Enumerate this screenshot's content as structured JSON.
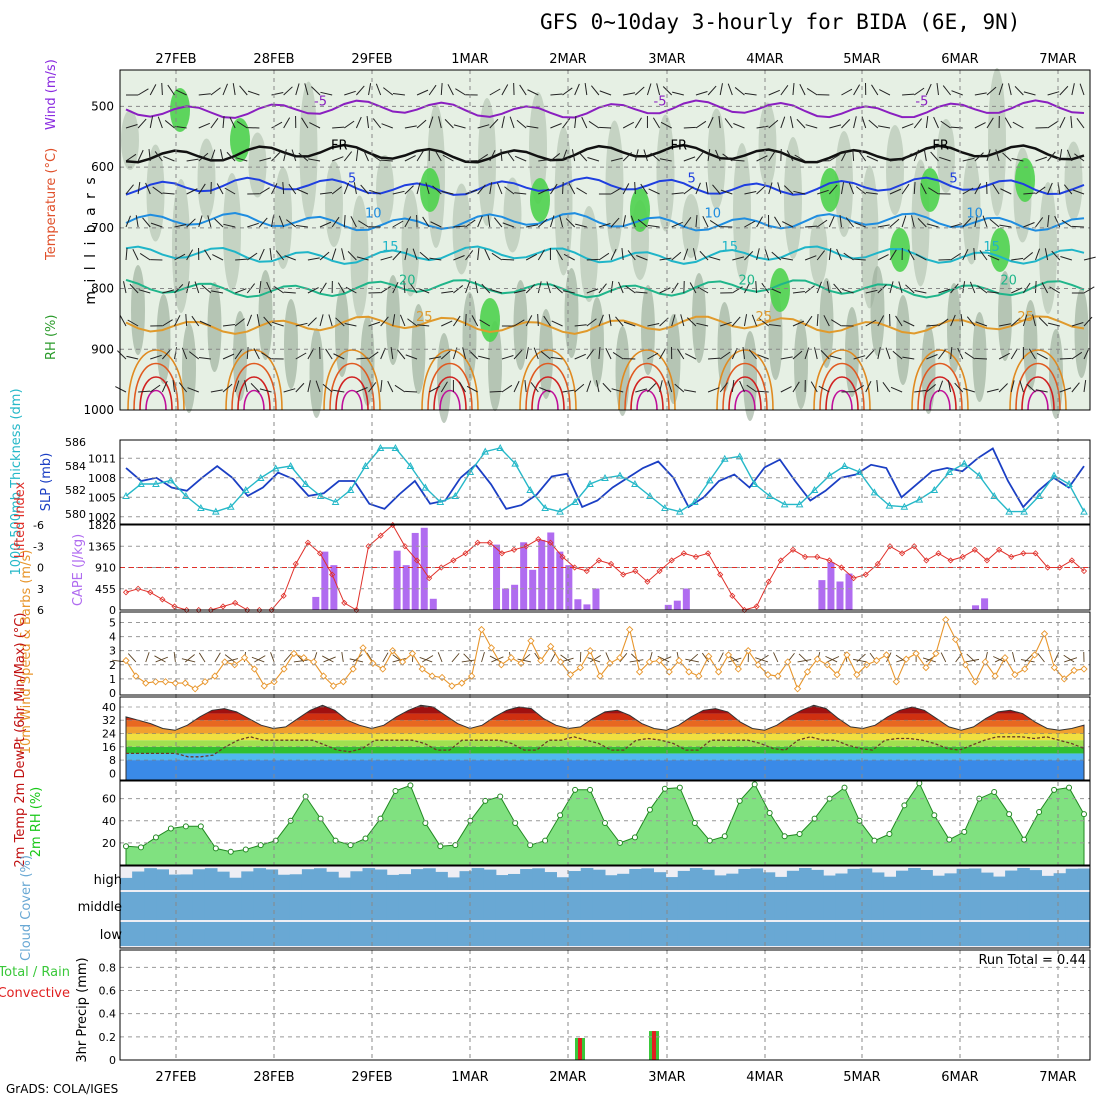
{
  "title": "GFS 0~10day 3-hourly for BIDA (6E, 9N)",
  "credit": "GrADS: COLA/IGES",
  "colors": {
    "rh_fill_light": "#e6f0e4",
    "rh_fill_mid": "#b9c9b8",
    "rh_fill_dark": "#94a894",
    "rh_fill_green": "#4ed24e",
    "slp": "#1b3fc4",
    "thickness": "#25b8c8",
    "lifted": "#e0302a",
    "cape": "#b06cf0",
    "wind_speed": "#e8962c",
    "temp": "#c01010",
    "rh_green": "#18c818",
    "cloud": "#69a8d4",
    "cloud_bg": "#eeeef4",
    "total_precip": "#3ac83a",
    "convective_precip": "#e02020",
    "panel_bg": "#ffffff"
  },
  "chart_data": [
    {
      "type": "contour",
      "panel": "upper-air",
      "x_labels": [
        "27FEB",
        "28FEB",
        "29FEB",
        "1MAR",
        "2MAR",
        "3MAR",
        "4MAR",
        "5MAR",
        "6MAR",
        "7MAR"
      ],
      "ylabel": "m i l l i b a r s",
      "yticks": [
        500,
        600,
        700,
        800,
        900,
        1000
      ],
      "legend": [
        "RH (%)",
        "Temperature (°C)",
        "Wind (m/s)"
      ],
      "contour_labels": [
        "-5",
        "FR",
        "5",
        "10",
        "15",
        "20",
        "25"
      ],
      "isotherms": [
        {
          "label": "-5",
          "color": "#8a1fc0",
          "level_hpa": 505
        },
        {
          "label": "FR",
          "color": "#111111",
          "level_hpa": 578
        },
        {
          "label": "5",
          "color": "#1f3fe0",
          "level_hpa": 632
        },
        {
          "label": "10",
          "color": "#1f8de0",
          "level_hpa": 690
        },
        {
          "label": "15",
          "color": "#1fb5c8",
          "level_hpa": 745
        },
        {
          "label": "20",
          "color": "#1fb58a",
          "level_hpa": 800
        },
        {
          "label": "25",
          "color": "#e09a2c",
          "level_hpa": 860
        }
      ]
    },
    {
      "type": "line",
      "panel": "slp-thickness",
      "left_label": "1000-500mb Thickness (dm)",
      "right_label": "SLP (mb)",
      "left_ticks": [
        580,
        582,
        584,
        586
      ],
      "right_ticks": [
        1002,
        1005,
        1008,
        1011
      ],
      "series": [
        {
          "name": "SLP (mb)",
          "values": [
            1009.5,
            1007.5,
            1008,
            1006.5,
            1006,
            1008,
            1009.8,
            1008,
            1005.2,
            1006.5,
            1008.8,
            1007.8,
            1005.2,
            1005.6,
            1007.5,
            1007.5,
            1004,
            1003.2,
            1005.5,
            1007.5,
            1004,
            1004.5,
            1008,
            1010,
            1007,
            1003.2,
            1003.8,
            1005.4,
            1008.2,
            1008.6,
            1003.5,
            1004.5,
            1006.5,
            1008,
            1009.5,
            1010.5,
            1008,
            1003.5,
            1005,
            1007.5,
            1008.5,
            1006.5,
            1009.6,
            1010.8,
            1007.5,
            1004.5,
            1006,
            1008,
            1008.5,
            1010,
            1009.5,
            1005,
            1007,
            1009,
            1009.5,
            1009,
            1011,
            1012.5,
            1007.5,
            1003.5,
            1006,
            1008,
            1006.5,
            1009.8
          ]
        },
        {
          "name": "1000-500mb Thickness (dm)",
          "values": [
            581.5,
            582.5,
            582.5,
            582.8,
            581.5,
            580.5,
            580.2,
            580.6,
            582,
            583,
            583.8,
            584,
            582.5,
            581.5,
            581,
            582,
            584,
            585.5,
            585.5,
            584,
            582.2,
            581,
            581.5,
            583.5,
            585.2,
            585.5,
            584.2,
            582,
            580.5,
            580.2,
            581,
            582.5,
            583,
            583.2,
            582.5,
            581.5,
            580.5,
            580.2,
            581,
            582.8,
            584.6,
            584.8,
            582.5,
            581.5,
            580.8,
            580.8,
            582,
            583.2,
            584,
            583.5,
            581.8,
            580.7,
            580.6,
            581.2,
            582,
            583.5,
            584.2,
            583.2,
            581.5,
            580.2,
            580.2,
            581.5,
            583.2,
            582.5,
            580.2
          ]
        }
      ]
    },
    {
      "type": "bar+line",
      "panel": "lifted-cape",
      "left_label": "Lifted Index",
      "right_label": "CAPE (J/kg)",
      "left_ticks": [
        "-6",
        "-3",
        "0",
        "3",
        "6"
      ],
      "right_ticks": [
        0,
        455,
        910,
        1365,
        1820
      ],
      "series": [
        {
          "name": "Lifted Index",
          "values": [
            3.5,
            3,
            3.5,
            4.5,
            5.5,
            6.5,
            7,
            7,
            5.5,
            5,
            6.5,
            7,
            6.5,
            4,
            -0.5,
            -3.5,
            -2,
            1,
            5,
            6.5,
            -3,
            -4.5,
            -6.5,
            -3,
            -1,
            1.5,
            0,
            -1,
            -2,
            -3.5,
            -3.5,
            -2,
            -2.5,
            -3,
            -4,
            -3.5,
            -1.5,
            0,
            0.5,
            -1,
            -0.5,
            1,
            0.5,
            2,
            0.5,
            -1,
            -2,
            -1.5,
            -2,
            1,
            4,
            7,
            5.5,
            2,
            -1,
            -2.5,
            -1.5,
            -1.5,
            -1,
            0,
            1.5,
            1,
            -0.5,
            -3,
            -2,
            -3,
            -1,
            -2,
            -1,
            -1.5,
            -2.5,
            -1,
            -2.5,
            -1.5,
            -2,
            -2,
            0,
            0,
            -1,
            0.5
          ]
        },
        {
          "name": "CAPE (J/kg)",
          "values": [
            0,
            0,
            0,
            0,
            0,
            0,
            0,
            0,
            0,
            0,
            0,
            0,
            0,
            0,
            0,
            0,
            0,
            0,
            0,
            0,
            0,
            280,
            1250,
            960,
            0,
            0,
            0,
            0,
            0,
            0,
            1270,
            960,
            1650,
            1760,
            240,
            0,
            0,
            0,
            0,
            0,
            0,
            1400,
            460,
            540,
            1450,
            860,
            1500,
            1660,
            1250,
            960,
            230,
            120,
            460,
            0,
            0,
            0,
            0,
            0,
            0,
            0,
            110,
            200,
            460,
            0,
            0,
            0,
            0,
            0,
            0,
            0,
            0,
            0,
            0,
            0,
            0,
            0,
            0,
            640,
            1020,
            610,
            780,
            0,
            0,
            0,
            0,
            0,
            0,
            0,
            0,
            0,
            0,
            0,
            0,
            0,
            100,
            250,
            0,
            0,
            0,
            0,
            0,
            0,
            0,
            0,
            0,
            0,
            0
          ]
        }
      ]
    },
    {
      "type": "line",
      "panel": "wind10m",
      "ylabel": "10m Wind Speed & Barbs (m/s)",
      "yticks": [
        0,
        1,
        2,
        3,
        4,
        5
      ],
      "series": [
        {
          "name": "10m Wind Speed (m/s)",
          "values": [
            2.3,
            1.2,
            0.7,
            0.8,
            0.8,
            0.7,
            0.7,
            0.3,
            0.8,
            1.2,
            2.2,
            2,
            2.5,
            1.7,
            0.5,
            0.8,
            1.7,
            2.8,
            2.5,
            2.2,
            1.2,
            0.5,
            0.8,
            1.7,
            3.2,
            2.1,
            1.7,
            3,
            2.2,
            2.8,
            1.7,
            1.2,
            1.1,
            0.5,
            0.7,
            1.2,
            4.5,
            3.2,
            2,
            2.5,
            2.1,
            3.7,
            2.3,
            3.3,
            2.2,
            1.3,
            1.8,
            3,
            1.2,
            2.1,
            2.5,
            4.5,
            1.5,
            2.2,
            2.3,
            1.5,
            2.3,
            1.5,
            1.2,
            2.6,
            1.5,
            2.7,
            1.7,
            3,
            2,
            1.3,
            1.2,
            2.2,
            0.3,
            1.5,
            2.4,
            2,
            1.3,
            2.7,
            1.3,
            2,
            2.3,
            2.7,
            0.8,
            2.4,
            2.8,
            1.8,
            2.8,
            5.2,
            3.8,
            2,
            0.8,
            2.2,
            1.2,
            2.5,
            1.3,
            1.7,
            2.7,
            4.2,
            1.8,
            1,
            1.6,
            1.7
          ]
        }
      ]
    },
    {
      "type": "area",
      "panel": "temp2m",
      "ylabel": "2m Temp 2m DewPt (6hr Min/Max) (°C)",
      "yticks": [
        0,
        8,
        16,
        24,
        32,
        40
      ],
      "series": [
        {
          "name": "2m Temp",
          "values": [
            34,
            32,
            30,
            27,
            26,
            29,
            34,
            38,
            39,
            37,
            33,
            29,
            27,
            28,
            33,
            38,
            41,
            38,
            32,
            29,
            27,
            29,
            34,
            38,
            41,
            40,
            35,
            30,
            27,
            29,
            34,
            38,
            40,
            39,
            33,
            29,
            27,
            28,
            33,
            37,
            38,
            35,
            30,
            27,
            26,
            29,
            34,
            38,
            39,
            37,
            31,
            27,
            26,
            29,
            34,
            38,
            41,
            39,
            33,
            28,
            27,
            29,
            34,
            38,
            40,
            38,
            33,
            28,
            26,
            28,
            33,
            37,
            38,
            36,
            31,
            27,
            26,
            27,
            29
          ]
        },
        {
          "name": "2m DewPt",
          "values": [
            12,
            12,
            12,
            12,
            12,
            10,
            10,
            11,
            16,
            20,
            22,
            20,
            20,
            20,
            20,
            20,
            17,
            14,
            13,
            15,
            20,
            20,
            20,
            20,
            18,
            14,
            14,
            20,
            20,
            20,
            20,
            18,
            14,
            14,
            20,
            20,
            22,
            20,
            18,
            14,
            14,
            20,
            21,
            20,
            18,
            14,
            14,
            20,
            20,
            20,
            20,
            18,
            15,
            14,
            20,
            22,
            20,
            20,
            17,
            15,
            14,
            20,
            21,
            21,
            20,
            18,
            15,
            14,
            17,
            20,
            22,
            22,
            22,
            21,
            22,
            20,
            18,
            15
          ]
        }
      ]
    },
    {
      "type": "area",
      "panel": "rh2m",
      "ylabel": "2m RH (%)",
      "yticks": [
        20,
        40,
        60
      ],
      "series": [
        {
          "name": "2m RH (%)",
          "values": [
            17,
            16,
            25,
            33,
            35,
            35,
            15,
            12,
            14,
            18,
            22,
            40,
            62,
            42,
            22,
            18,
            24,
            42,
            67,
            72,
            38,
            17,
            18,
            40,
            58,
            62,
            38,
            18,
            22,
            45,
            68,
            68,
            38,
            20,
            25,
            50,
            69,
            70,
            38,
            22,
            26,
            58,
            73,
            47,
            26,
            28,
            42,
            60,
            70,
            40,
            22,
            28,
            54,
            74,
            45,
            23,
            30,
            60,
            66,
            46,
            23,
            48,
            68,
            70,
            46
          ]
        }
      ]
    },
    {
      "type": "heatmap",
      "panel": "cloud",
      "ylabel": "Cloud Cover (%)",
      "row_labels": [
        "high",
        "middle",
        "low"
      ]
    },
    {
      "type": "bar",
      "panel": "precip",
      "ylabel": "3hr Precip (mm)",
      "legend": [
        "Total / Rain",
        "Convective"
      ],
      "annotation": "Run Total = 0.44",
      "yticks": [
        0,
        0.2,
        0.4,
        0.6,
        0.8
      ],
      "series": [
        {
          "name": "Total / Rain",
          "values": [
            0.19,
            0.25
          ]
        },
        {
          "name": "Convective",
          "values": [
            0.19,
            0.25
          ]
        }
      ],
      "x": [
        "2MAR",
        "3MAR"
      ]
    }
  ]
}
